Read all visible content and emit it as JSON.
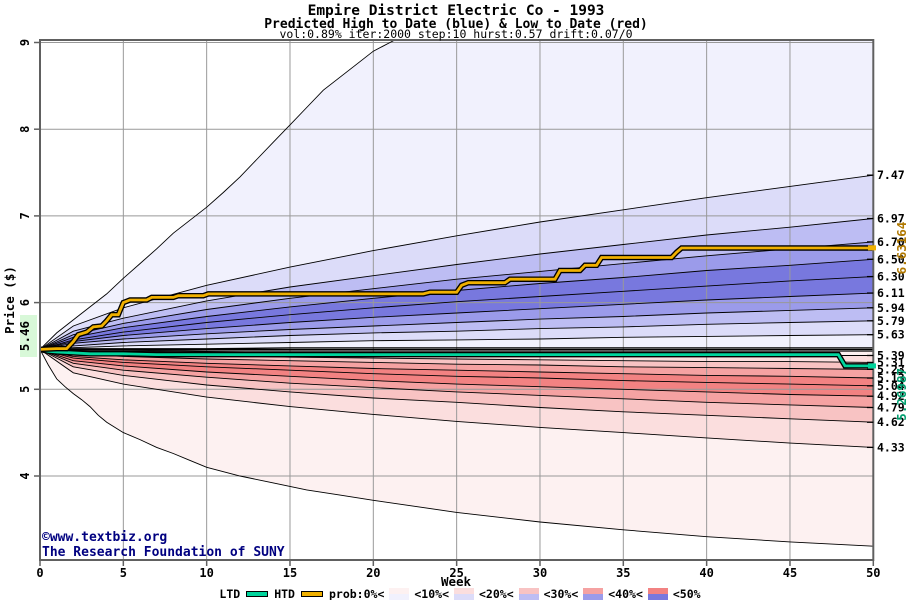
{
  "title": "Empire District Electric Co - 1993",
  "subtitle": "Predicted High to Date (blue) &  Low to Date (red)",
  "params_line": "vol:0.89% iter:2000 step:10 hurst:0.57 drift:0.07/0",
  "watermark": {
    "line1": "©www.textbiz.org",
    "line2": "The Research Foundation of SUNY"
  },
  "legend": {
    "ltd_label": "LTD",
    "htd_label": "HTD",
    "prob_label": "prob:0%<",
    "steps": [
      "<10%<",
      "<20%<",
      "<30%<",
      "<40%<",
      "<50%"
    ]
  },
  "colors": {
    "htd_line": "#f0b000",
    "ltd_line": "#00d49c",
    "htd_label": "#b07800",
    "ltd_label": "#00a070",
    "watermark": "#000080",
    "grid": "#999999",
    "border": "#606060",
    "start_label_bg": "#d8f8d8",
    "blue_levels": [
      "#f1f1fd",
      "#dcdcf9",
      "#bdbdf3",
      "#9b9bea",
      "#7878de"
    ],
    "red_levels": [
      "#fdf1f1",
      "#fbdede",
      "#f8c3c3",
      "#f5a2a2",
      "#f28282"
    ]
  },
  "chart_data": {
    "type": "area",
    "title": "Empire District Electric Co - 1993",
    "xlabel": "Week",
    "ylabel": "Price ($)",
    "xlim": [
      0,
      50
    ],
    "ylim": [
      3.03,
      9.03
    ],
    "grid": true,
    "legend_position": "bottom",
    "x_ticks": [
      0,
      5,
      10,
      15,
      20,
      25,
      30,
      35,
      40,
      45,
      50
    ],
    "y_ticks": [
      4,
      5,
      6,
      7,
      8,
      9
    ],
    "start_price": 5.46,
    "start_label": "5.46",
    "htd_final": 6.63164,
    "htd_final_label": "6.63164",
    "ltd_final": 5.26987,
    "ltd_final_label": "5.26987",
    "right_axis_labels": [
      "7.47",
      "6.97",
      "6.70",
      "6.50",
      "6.30",
      "6.11",
      "5.94",
      "5.79",
      "5.63",
      "5.39",
      "5.31",
      "5.23",
      "5.13",
      "5.04",
      "4.92",
      "4.79",
      "4.62",
      "4.33"
    ],
    "boundary_weeks": [
      0,
      2,
      5,
      10,
      15,
      20,
      25,
      30,
      35,
      40,
      45,
      50
    ],
    "blue_boundaries": [
      {
        "name": "high-0pct-envelope",
        "weeks": [
          0,
          1,
          2,
          3,
          4,
          5,
          6,
          7,
          8,
          9,
          10,
          11,
          12,
          13,
          14,
          15,
          16,
          17,
          18,
          19,
          20,
          21,
          22,
          50
        ],
        "prices": [
          5.46,
          5.65,
          5.8,
          5.95,
          6.1,
          6.28,
          6.45,
          6.62,
          6.8,
          6.95,
          7.1,
          7.27,
          7.45,
          7.65,
          7.85,
          8.05,
          8.25,
          8.45,
          8.6,
          8.75,
          8.9,
          9.0,
          9.1,
          9.1
        ]
      },
      {
        "name": "high-10pct",
        "prices": [
          5.46,
          5.73,
          5.94,
          6.2,
          6.41,
          6.6,
          6.77,
          6.93,
          7.07,
          7.21,
          7.34,
          7.47
        ]
      },
      {
        "name": "high-20pct",
        "prices": [
          5.46,
          5.67,
          5.82,
          6.02,
          6.18,
          6.31,
          6.44,
          6.56,
          6.67,
          6.78,
          6.87,
          6.97
        ]
      },
      {
        "name": "high-30pct",
        "prices": [
          5.46,
          5.63,
          5.76,
          5.92,
          6.05,
          6.16,
          6.27,
          6.36,
          6.45,
          6.54,
          6.62,
          6.7
        ]
      },
      {
        "name": "high-40pct",
        "prices": [
          5.46,
          5.6,
          5.71,
          5.84,
          5.95,
          6.05,
          6.14,
          6.22,
          6.29,
          6.37,
          6.43,
          6.5
        ]
      },
      {
        "name": "high-median",
        "prices": [
          5.46,
          5.57,
          5.66,
          5.77,
          5.86,
          5.94,
          6.01,
          6.07,
          6.13,
          6.19,
          6.25,
          6.3
        ]
      },
      {
        "name": "high-60pct",
        "prices": [
          5.46,
          5.55,
          5.62,
          5.7,
          5.77,
          5.83,
          5.88,
          5.93,
          5.98,
          6.03,
          6.07,
          6.11
        ]
      },
      {
        "name": "high-70pct",
        "prices": [
          5.46,
          5.53,
          5.58,
          5.64,
          5.69,
          5.73,
          5.77,
          5.81,
          5.84,
          5.88,
          5.91,
          5.94
        ]
      },
      {
        "name": "high-80pct",
        "prices": [
          5.46,
          5.5,
          5.54,
          5.58,
          5.62,
          5.65,
          5.67,
          5.7,
          5.72,
          5.75,
          5.77,
          5.79
        ]
      },
      {
        "name": "high-90pct",
        "prices": [
          5.46,
          5.48,
          5.5,
          5.52,
          5.54,
          5.56,
          5.57,
          5.58,
          5.6,
          5.61,
          5.62,
          5.63
        ]
      },
      {
        "name": "high-100pct",
        "prices": [
          5.46,
          5.47,
          5.47,
          5.47,
          5.48,
          5.48,
          5.48,
          5.48,
          5.48,
          5.48,
          5.48,
          5.48
        ]
      }
    ],
    "red_boundaries": [
      {
        "name": "low-100pct",
        "prices": [
          5.46,
          5.45,
          5.45,
          5.44,
          5.44,
          5.44,
          5.44,
          5.44,
          5.44,
          5.44,
          5.44,
          5.44
        ]
      },
      {
        "name": "low-90pct",
        "prices": [
          5.46,
          5.44,
          5.44,
          5.43,
          5.42,
          5.41,
          5.41,
          5.4,
          5.4,
          5.4,
          5.39,
          5.39
        ]
      },
      {
        "name": "low-80pct",
        "prices": [
          5.46,
          5.42,
          5.41,
          5.39,
          5.37,
          5.36,
          5.35,
          5.34,
          5.33,
          5.32,
          5.32,
          5.31
        ]
      },
      {
        "name": "low-70pct",
        "prices": [
          5.46,
          5.41,
          5.38,
          5.35,
          5.33,
          5.31,
          5.29,
          5.28,
          5.26,
          5.25,
          5.24,
          5.23
        ]
      },
      {
        "name": "low-60pct",
        "prices": [
          5.46,
          5.38,
          5.34,
          5.3,
          5.27,
          5.24,
          5.22,
          5.2,
          5.18,
          5.16,
          5.15,
          5.13
        ]
      },
      {
        "name": "low-median",
        "prices": [
          5.46,
          5.36,
          5.31,
          5.26,
          5.22,
          5.18,
          5.15,
          5.13,
          5.1,
          5.08,
          5.06,
          5.04
        ]
      },
      {
        "name": "low-40pct",
        "prices": [
          5.46,
          5.33,
          5.27,
          5.2,
          5.15,
          5.1,
          5.06,
          5.03,
          5.0,
          4.97,
          4.94,
          4.92
        ]
      },
      {
        "name": "low-30pct",
        "prices": [
          5.46,
          5.3,
          5.22,
          5.14,
          5.07,
          5.02,
          4.97,
          4.93,
          4.89,
          4.85,
          4.82,
          4.79
        ]
      },
      {
        "name": "low-20pct",
        "prices": [
          5.46,
          5.26,
          5.16,
          5.05,
          4.97,
          4.9,
          4.85,
          4.79,
          4.74,
          4.7,
          4.66,
          4.62
        ]
      },
      {
        "name": "low-10pct",
        "prices": [
          5.46,
          5.19,
          5.06,
          4.91,
          4.8,
          4.71,
          4.63,
          4.56,
          4.5,
          4.44,
          4.38,
          4.33
        ]
      },
      {
        "name": "low-0pct-envelope",
        "weeks": [
          0,
          0.5,
          1,
          1.5,
          2,
          2.5,
          3,
          3.5,
          4,
          5,
          6,
          7,
          8,
          9,
          10,
          12,
          14,
          16,
          18,
          20,
          25,
          30,
          35,
          40,
          45,
          50
        ],
        "prices": [
          5.46,
          5.28,
          5.12,
          5.03,
          4.95,
          4.88,
          4.8,
          4.7,
          4.62,
          4.5,
          4.42,
          4.33,
          4.26,
          4.18,
          4.1,
          4.0,
          3.92,
          3.84,
          3.78,
          3.72,
          3.58,
          3.47,
          3.38,
          3.3,
          3.24,
          3.19
        ]
      }
    ],
    "htd_series": {
      "name": "HTD",
      "points": [
        [
          0,
          5.46
        ],
        [
          1,
          5.47
        ],
        [
          1.6,
          5.47
        ],
        [
          2,
          5.55
        ],
        [
          2.3,
          5.63
        ],
        [
          2.8,
          5.66
        ],
        [
          3.2,
          5.72
        ],
        [
          3.7,
          5.73
        ],
        [
          4,
          5.79
        ],
        [
          4.3,
          5.86
        ],
        [
          4.7,
          5.86
        ],
        [
          5,
          6.0
        ],
        [
          5.4,
          6.03
        ],
        [
          6.4,
          6.03
        ],
        [
          6.7,
          6.06
        ],
        [
          8,
          6.06
        ],
        [
          8.3,
          6.08
        ],
        [
          9.8,
          6.08
        ],
        [
          10.1,
          6.1
        ],
        [
          23,
          6.1
        ],
        [
          23.4,
          6.12
        ],
        [
          25,
          6.12
        ],
        [
          25.3,
          6.2
        ],
        [
          25.7,
          6.23
        ],
        [
          27.9,
          6.23
        ],
        [
          28.2,
          6.27
        ],
        [
          30.9,
          6.27
        ],
        [
          31.2,
          6.37
        ],
        [
          32.4,
          6.37
        ],
        [
          32.7,
          6.43
        ],
        [
          33.4,
          6.43
        ],
        [
          33.7,
          6.52
        ],
        [
          37.9,
          6.52
        ],
        [
          38.2,
          6.58
        ],
        [
          38.5,
          6.63
        ],
        [
          50,
          6.63
        ]
      ]
    },
    "ltd_series": {
      "name": "LTD",
      "points": [
        [
          0,
          5.46
        ],
        [
          0.5,
          5.44
        ],
        [
          1,
          5.43
        ],
        [
          2,
          5.42
        ],
        [
          3,
          5.41
        ],
        [
          5,
          5.41
        ],
        [
          7,
          5.4
        ],
        [
          10,
          5.4
        ],
        [
          47.9,
          5.4
        ],
        [
          48.3,
          5.27
        ],
        [
          50,
          5.27
        ]
      ]
    }
  }
}
